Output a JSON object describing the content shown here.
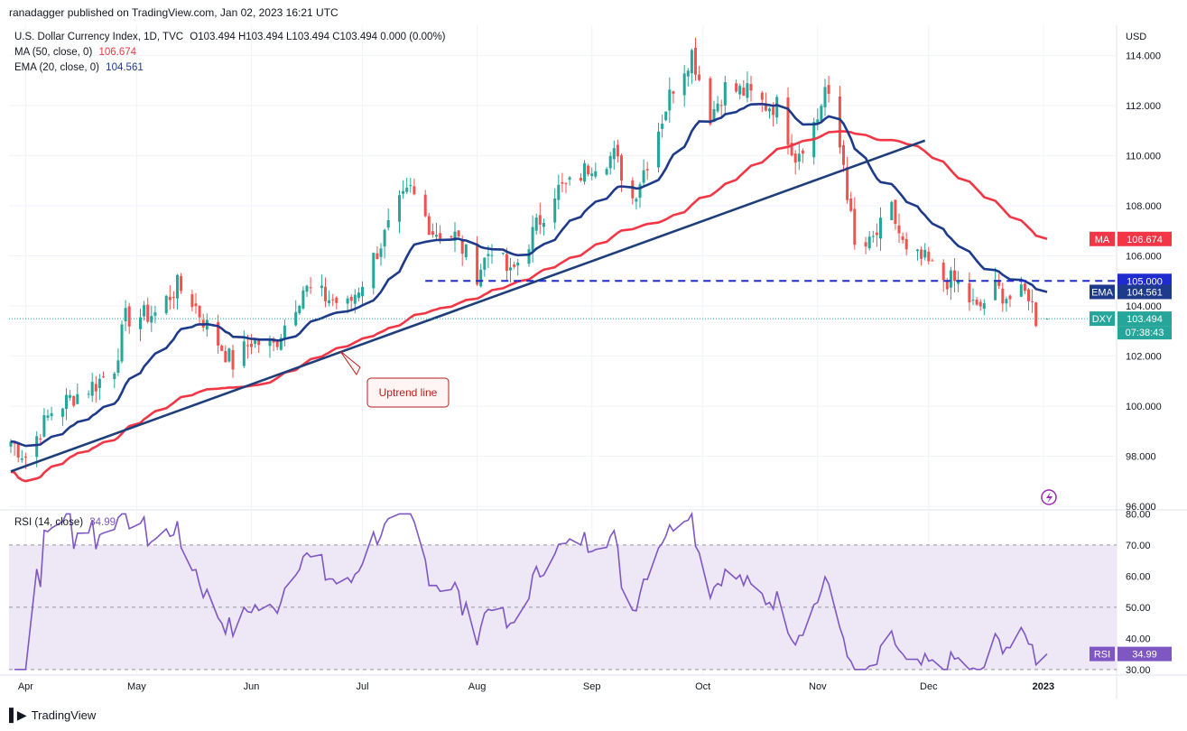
{
  "header": {
    "published": "ranadagger published on TradingView.com, Jan 02, 2023 16:21 UTC"
  },
  "legend": {
    "symbol": "U.S. Dollar Currency Index, 1D, TVC",
    "ohlc": "O103.494 H103.494 L103.494 C103.494 0.000 (0.00%)",
    "ma_label": "MA (50, close, 0)",
    "ma_value": "106.674",
    "ema_label": "EMA (20, close, 0)",
    "ema_value": "104.561",
    "rsi_label": "RSI (14, close)",
    "rsi_value": "34.99"
  },
  "footer": {
    "brand": "TradingView"
  },
  "colors": {
    "up": "#26a69a",
    "down": "#ef5350",
    "ma": "#f23645",
    "ema": "#1e3a8a",
    "trendline": "#1e3f7a",
    "support": "#1f2bcf",
    "rsi": "#7e57c2",
    "rsi_band": "#ede7f6",
    "dxy_badge": "#26a69a"
  },
  "chart_data": [
    {
      "type": "candlestick",
      "title": "U.S. Dollar Currency Index, 1D, TVC",
      "ylabel": "USD",
      "ylim": [
        95.9,
        115.2
      ],
      "y_ticks": [
        "114.000",
        "112.000",
        "110.000",
        "108.000",
        "106.000",
        "104.000",
        "102.000",
        "100.000",
        "98.000",
        "96.000"
      ],
      "x_ticks": [
        "Apr",
        "May",
        "Jun",
        "Jul",
        "Aug",
        "Sep",
        "Oct",
        "Nov",
        "Dec",
        "2023"
      ],
      "x_range": [
        "2022-03-28",
        "2023-01-02"
      ],
      "price_path": [
        [
          "2022-03-28",
          98.6
        ],
        [
          "2022-04-01",
          98.0
        ],
        [
          "2022-04-04",
          98.8
        ],
        [
          "2022-04-08",
          99.8
        ],
        [
          "2022-04-14",
          100.4
        ],
        [
          "2022-04-20",
          100.9
        ],
        [
          "2022-04-25",
          101.6
        ],
        [
          "2022-04-28",
          103.5
        ],
        [
          "2022-05-02",
          103.6
        ],
        [
          "2022-05-06",
          103.7
        ],
        [
          "2022-05-12",
          104.8
        ],
        [
          "2022-05-16",
          104.2
        ],
        [
          "2022-05-20",
          103.2
        ],
        [
          "2022-05-27",
          101.7
        ],
        [
          "2022-06-01",
          102.6
        ],
        [
          "2022-06-07",
          102.4
        ],
        [
          "2022-06-15",
          104.7
        ],
        [
          "2022-06-20",
          104.4
        ],
        [
          "2022-06-27",
          104.0
        ],
        [
          "2022-07-01",
          105.0
        ],
        [
          "2022-07-06",
          106.5
        ],
        [
          "2022-07-11",
          108.0
        ],
        [
          "2022-07-14",
          108.6
        ],
        [
          "2022-07-20",
          107.0
        ],
        [
          "2022-07-26",
          106.8
        ],
        [
          "2022-08-01",
          105.3
        ],
        [
          "2022-08-05",
          106.4
        ],
        [
          "2022-08-10",
          105.2
        ],
        [
          "2022-08-15",
          106.6
        ],
        [
          "2022-08-22",
          108.6
        ],
        [
          "2022-08-26",
          108.8
        ],
        [
          "2022-09-01",
          109.7
        ],
        [
          "2022-09-07",
          110.0
        ],
        [
          "2022-09-12",
          108.3
        ],
        [
          "2022-09-16",
          109.8
        ],
        [
          "2022-09-23",
          112.8
        ],
        [
          "2022-09-28",
          114.1
        ],
        [
          "2022-10-03",
          111.6
        ],
        [
          "2022-10-07",
          112.7
        ],
        [
          "2022-10-13",
          112.5
        ],
        [
          "2022-10-18",
          112.0
        ],
        [
          "2022-10-21",
          112.0
        ],
        [
          "2022-10-26",
          110.0
        ],
        [
          "2022-11-01",
          111.5
        ],
        [
          "2022-11-03",
          112.7
        ],
        [
          "2022-11-08",
          109.7
        ],
        [
          "2022-11-11",
          106.3
        ],
        [
          "2022-11-15",
          106.4
        ],
        [
          "2022-11-21",
          107.8
        ],
        [
          "2022-11-25",
          106.0
        ],
        [
          "2022-11-30",
          105.8
        ],
        [
          "2022-12-05",
          105.1
        ],
        [
          "2022-12-09",
          104.9
        ],
        [
          "2022-12-14",
          103.8
        ],
        [
          "2022-12-19",
          104.7
        ],
        [
          "2022-12-23",
          104.3
        ],
        [
          "2022-12-28",
          104.5
        ],
        [
          "2022-12-30",
          103.5
        ],
        [
          "2023-01-02",
          103.494
        ]
      ],
      "series": [
        {
          "name": "MA (50, close, 0)",
          "last": 106.674
        },
        {
          "name": "EMA (20, close, 0)",
          "last": 104.561
        }
      ],
      "annotations": [
        {
          "type": "trendline",
          "label": "Uptrend line",
          "from": [
            "2022-03-28",
            97.4
          ],
          "to": [
            "2022-11-30",
            110.6
          ]
        },
        {
          "type": "horizontal",
          "value": 105.0,
          "label": "105.000",
          "from": "2022-07-18",
          "to": "2023-01-02"
        }
      ],
      "price_badges": [
        {
          "name": "MA",
          "value": "106.674"
        },
        {
          "name": "",
          "value": "105.000"
        },
        {
          "name": "EMA",
          "value": "104.561"
        },
        {
          "name": "DXY",
          "value": "103.494",
          "countdown": "07:38:43"
        }
      ]
    },
    {
      "type": "line",
      "title": "RSI (14, close)",
      "ylim": [
        28.5,
        81
      ],
      "y_ticks": [
        "80.00",
        "70.00",
        "60.00",
        "50.00",
        "40.00",
        "30.00"
      ],
      "band": [
        30,
        70
      ],
      "last": 34.99,
      "badge": "RSI"
    }
  ]
}
